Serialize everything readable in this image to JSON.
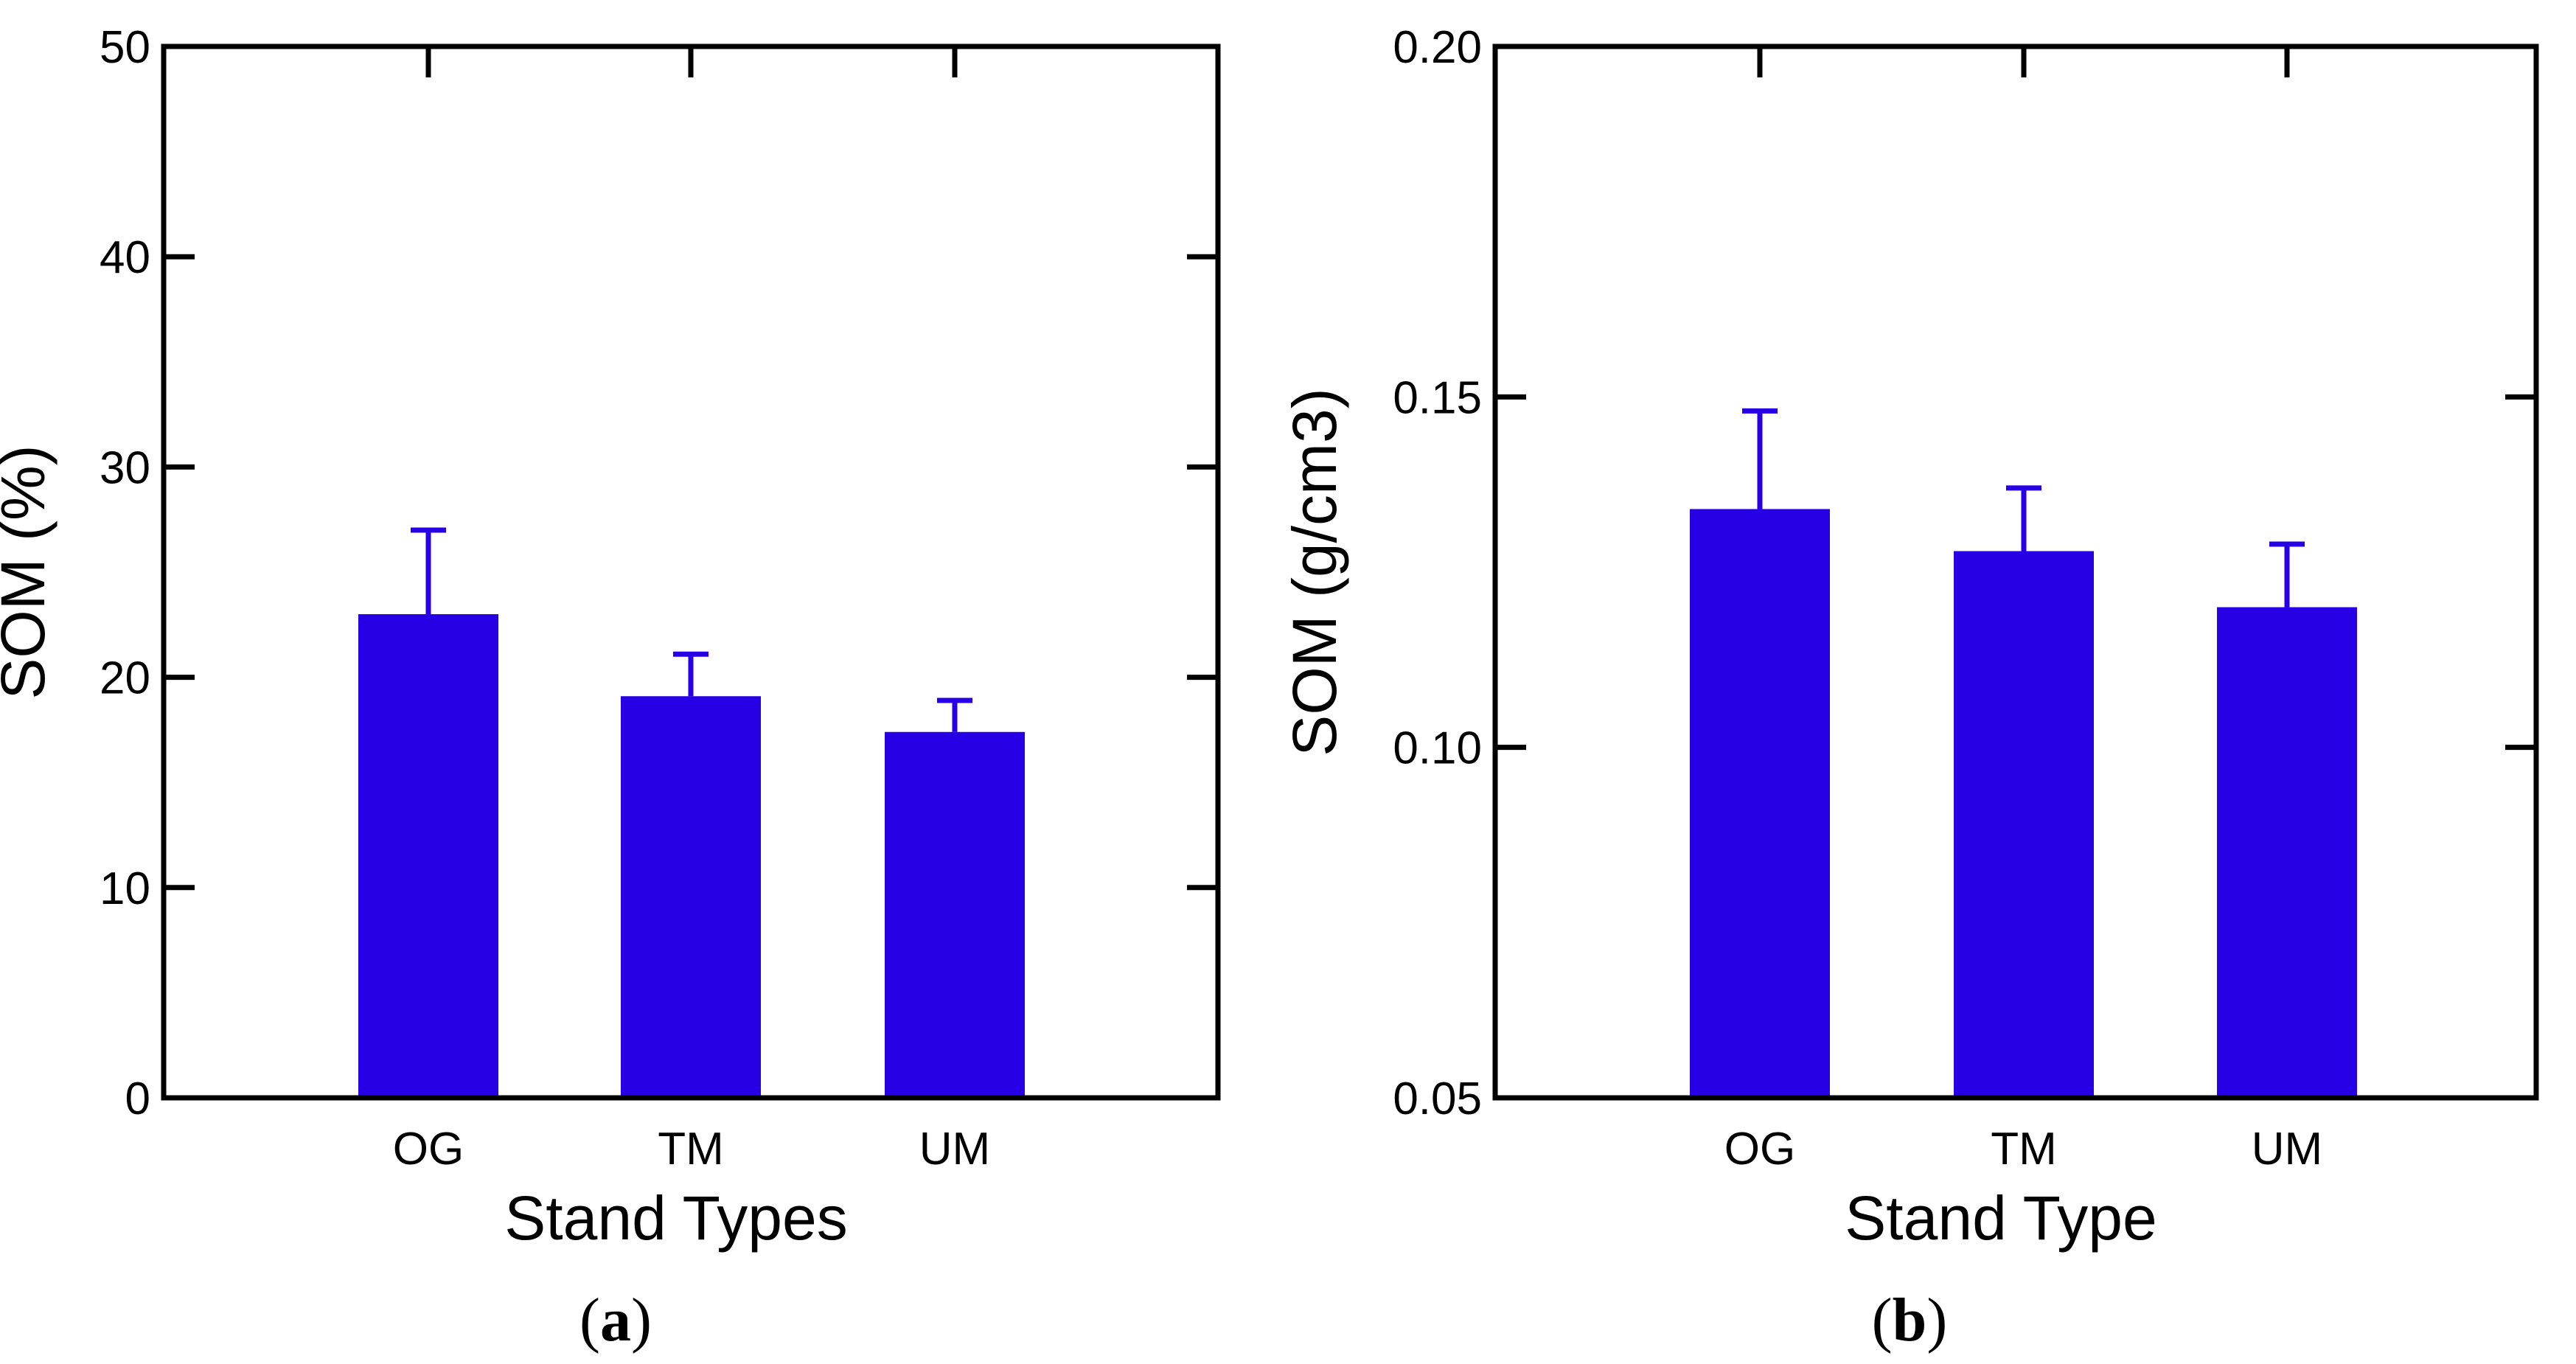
{
  "chart_data": [
    {
      "type": "bar",
      "panel_label": "a",
      "categories": [
        "OG",
        "TM",
        "UM"
      ],
      "values": [
        23.0,
        19.1,
        17.4
      ],
      "errors": [
        4.0,
        2.0,
        1.5
      ],
      "xlabel": "Stand Types",
      "ylabel": "SOM (%)",
      "ylim": [
        0,
        50
      ],
      "yticks": [
        0,
        10,
        20,
        30,
        40,
        50
      ],
      "ytick_labels": [
        "0",
        "10",
        "20",
        "30",
        "40",
        "50"
      ],
      "bar_color": "#2800e6",
      "grid": false
    },
    {
      "type": "bar",
      "panel_label": "b",
      "categories": [
        "OG",
        "TM",
        "UM"
      ],
      "values": [
        0.134,
        0.128,
        0.12
      ],
      "errors": [
        0.014,
        0.009,
        0.009
      ],
      "xlabel": "Stand Type",
      "ylabel": "SOM (g/cm3)",
      "ylim": [
        0.05,
        0.2
      ],
      "yticks": [
        0.05,
        0.1,
        0.15,
        0.2
      ],
      "ytick_labels": [
        "0.05",
        "0.10",
        "0.15",
        "0.20"
      ],
      "bar_color": "#2800e6",
      "grid": false
    }
  ]
}
